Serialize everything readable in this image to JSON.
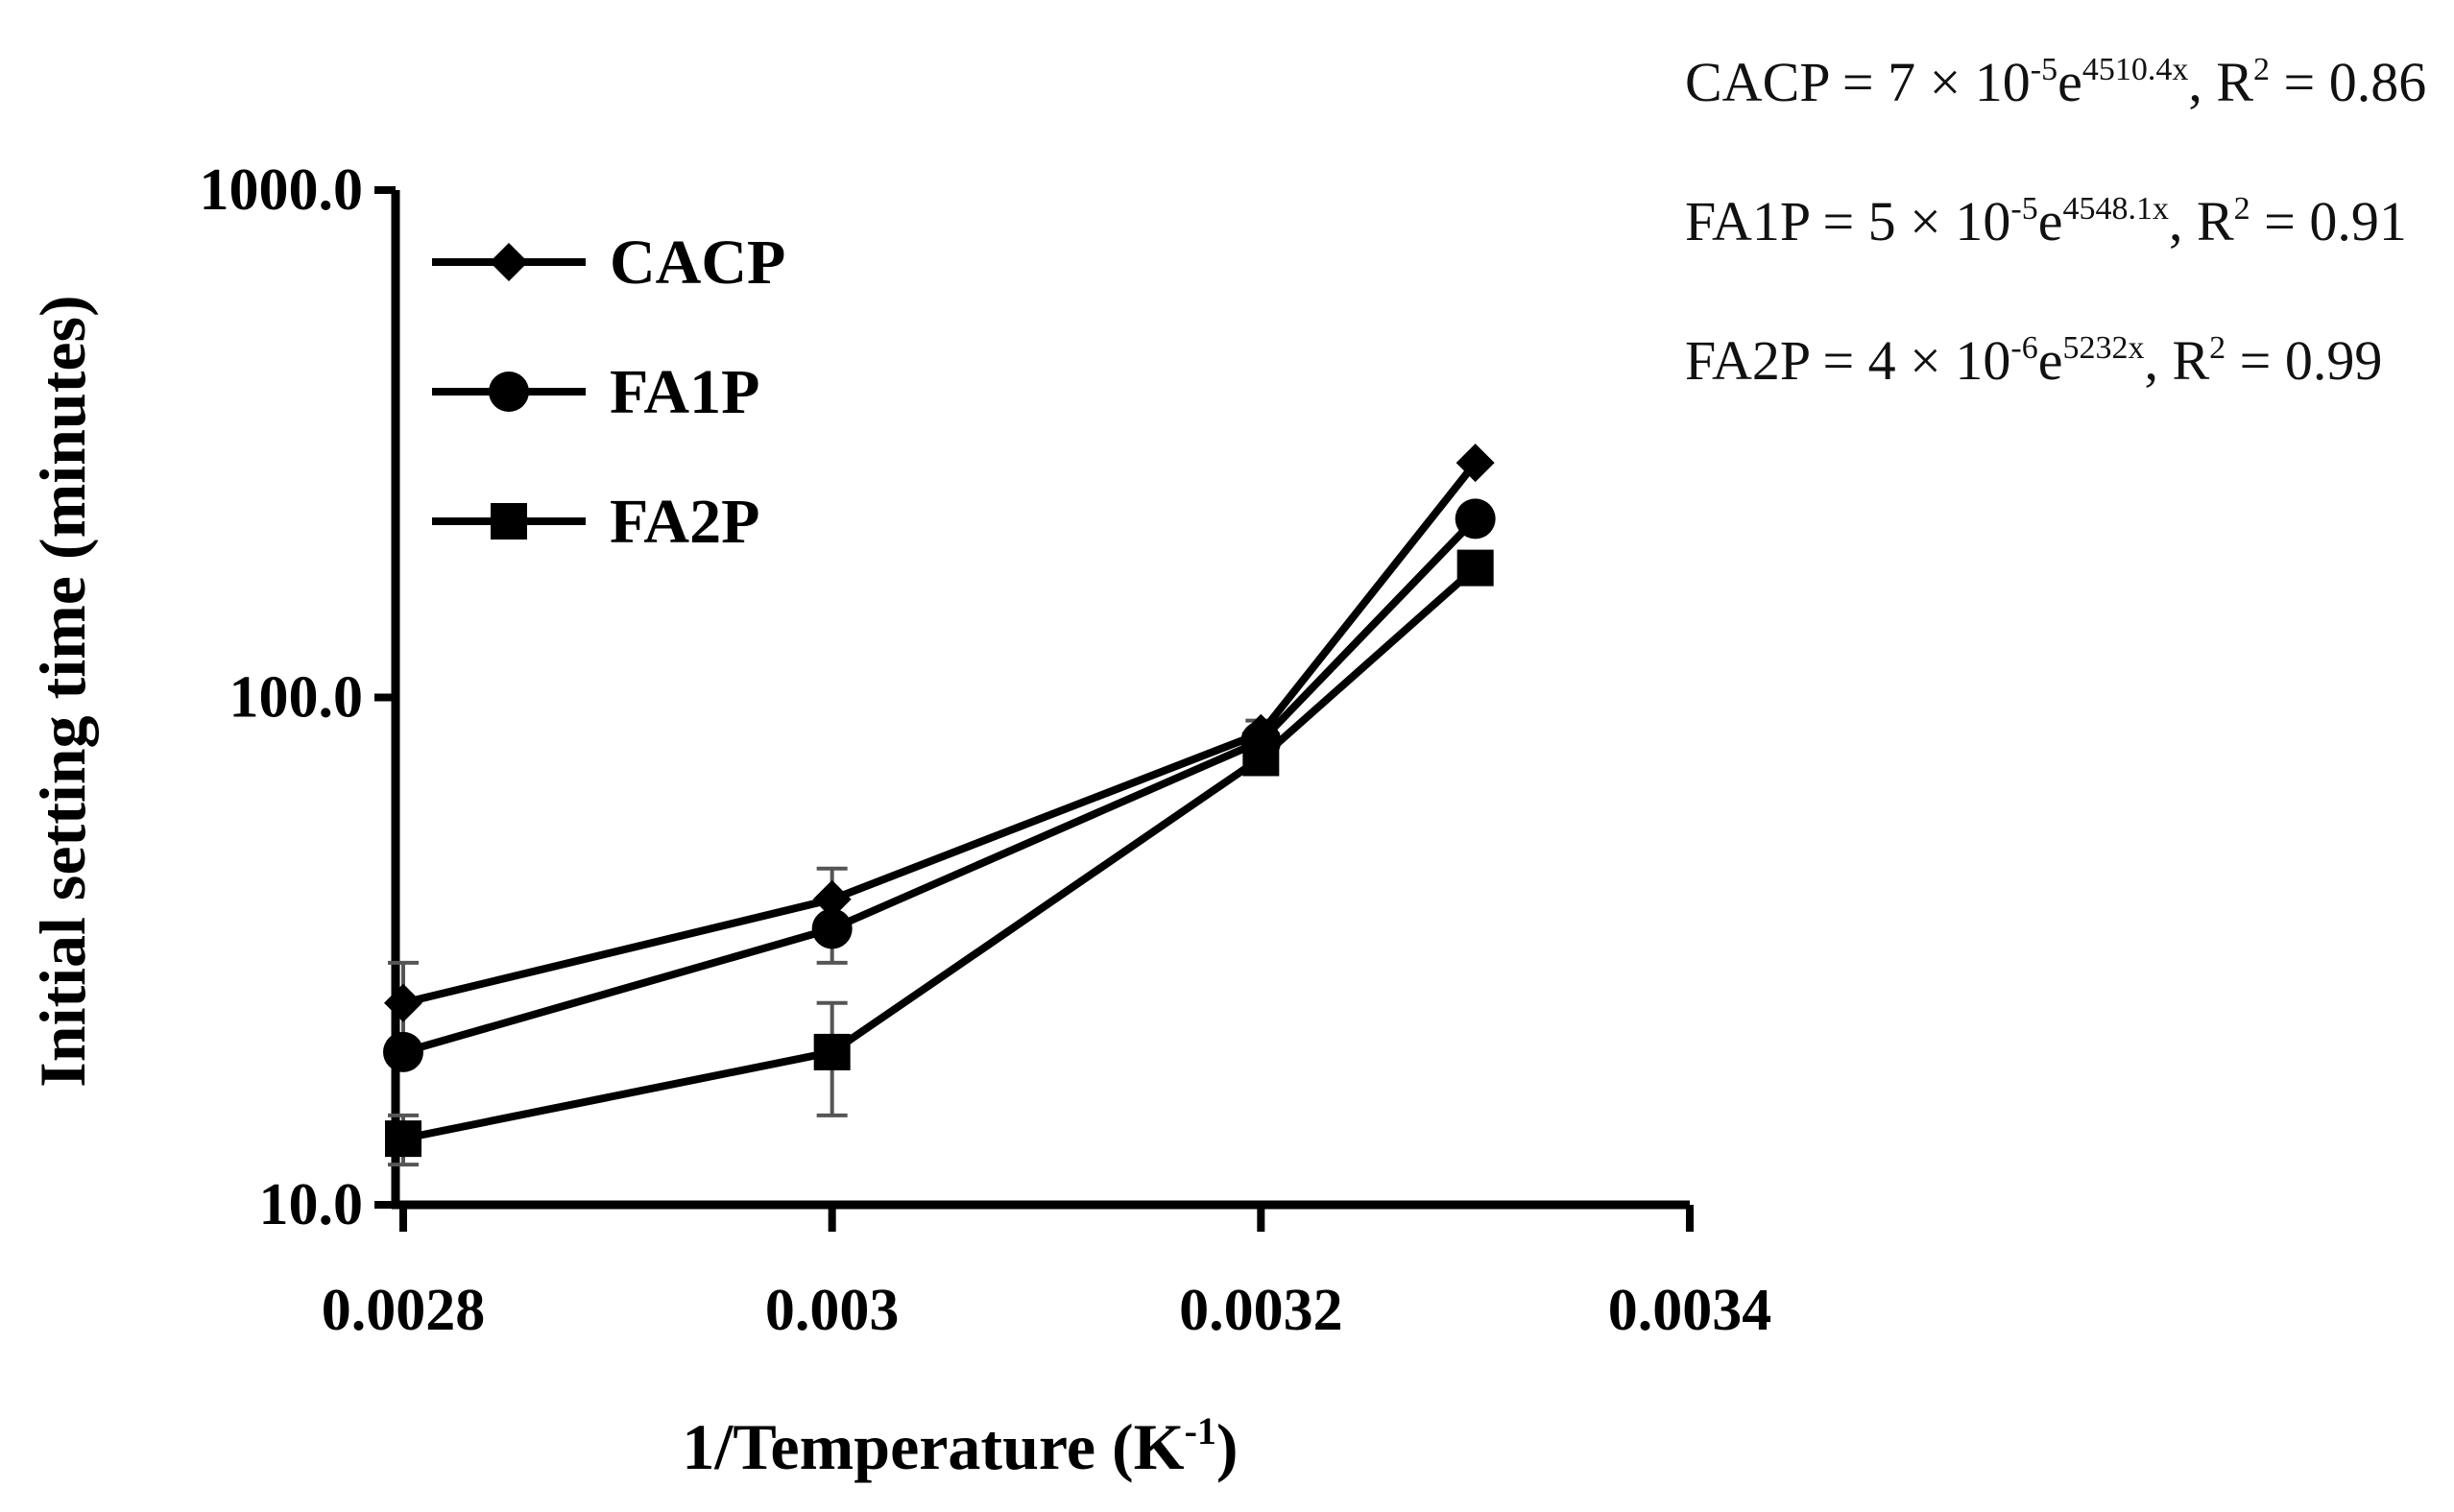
{
  "chart_data": {
    "type": "line",
    "title": "",
    "xlabel": "1/Temperature (K",
    "xlabel_sup": "-1",
    "xlabel_end": ")",
    "ylabel": "Initial setting time (minutes)",
    "yscale": "log",
    "xlim": [
      0.0028,
      0.0034
    ],
    "ylim": [
      10,
      1000
    ],
    "xticks": [
      {
        "value": 0.0028,
        "label": "0.0028"
      },
      {
        "value": 0.003,
        "label": "0.003"
      },
      {
        "value": 0.0032,
        "label": "0.0032"
      },
      {
        "value": 0.0034,
        "label": "0.0034"
      }
    ],
    "yticks": [
      {
        "value": 10,
        "label": "10.0"
      },
      {
        "value": 100,
        "label": "100.0"
      },
      {
        "value": 1000,
        "label": "1000.0"
      }
    ],
    "legend_position": "top-left",
    "series": [
      {
        "name": "CACP",
        "marker": "diamond",
        "color": "#000000",
        "x": [
          0.0028,
          0.003,
          0.0032,
          0.0033
        ],
        "y": [
          25,
          40,
          85,
          290
        ],
        "err": [
          5,
          6,
          5,
          0
        ]
      },
      {
        "name": "FA1P",
        "marker": "circle",
        "color": "#000000",
        "x": [
          0.0028,
          0.003,
          0.0032,
          0.0033
        ],
        "y": [
          20,
          35,
          82,
          225
        ],
        "err": [
          0,
          5,
          3,
          0
        ]
      },
      {
        "name": "FA2P",
        "marker": "square",
        "color": "#000000",
        "x": [
          0.0028,
          0.003,
          0.0032,
          0.0033
        ],
        "y": [
          13.5,
          20,
          76,
          180
        ],
        "err": [
          1.5,
          5,
          2,
          0
        ]
      }
    ],
    "equations": [
      {
        "name": "CACP",
        "prefix": "CACP = 7 × 10",
        "exp1": "-5",
        "mid": "e",
        "exp2": "4510.4x",
        "suffix": ", R",
        "r2sup": "2",
        "r2val": " = 0.86"
      },
      {
        "name": "FA1P",
        "prefix": "FA1P = 5 × 10",
        "exp1": "-5",
        "mid": "e",
        "exp2": "4548.1x",
        "suffix": ", R",
        "r2sup": "2",
        "r2val": " = 0.91"
      },
      {
        "name": "FA2P",
        "prefix": "FA2P = 4 × 10",
        "exp1": "-6",
        "mid": "e",
        "exp2": "5232x",
        "suffix": ", R",
        "r2sup": "2",
        "r2val": " = 0.99"
      }
    ],
    "colors": {
      "axis": "#000000",
      "line": "#000000",
      "errorbar": "#555555"
    }
  }
}
